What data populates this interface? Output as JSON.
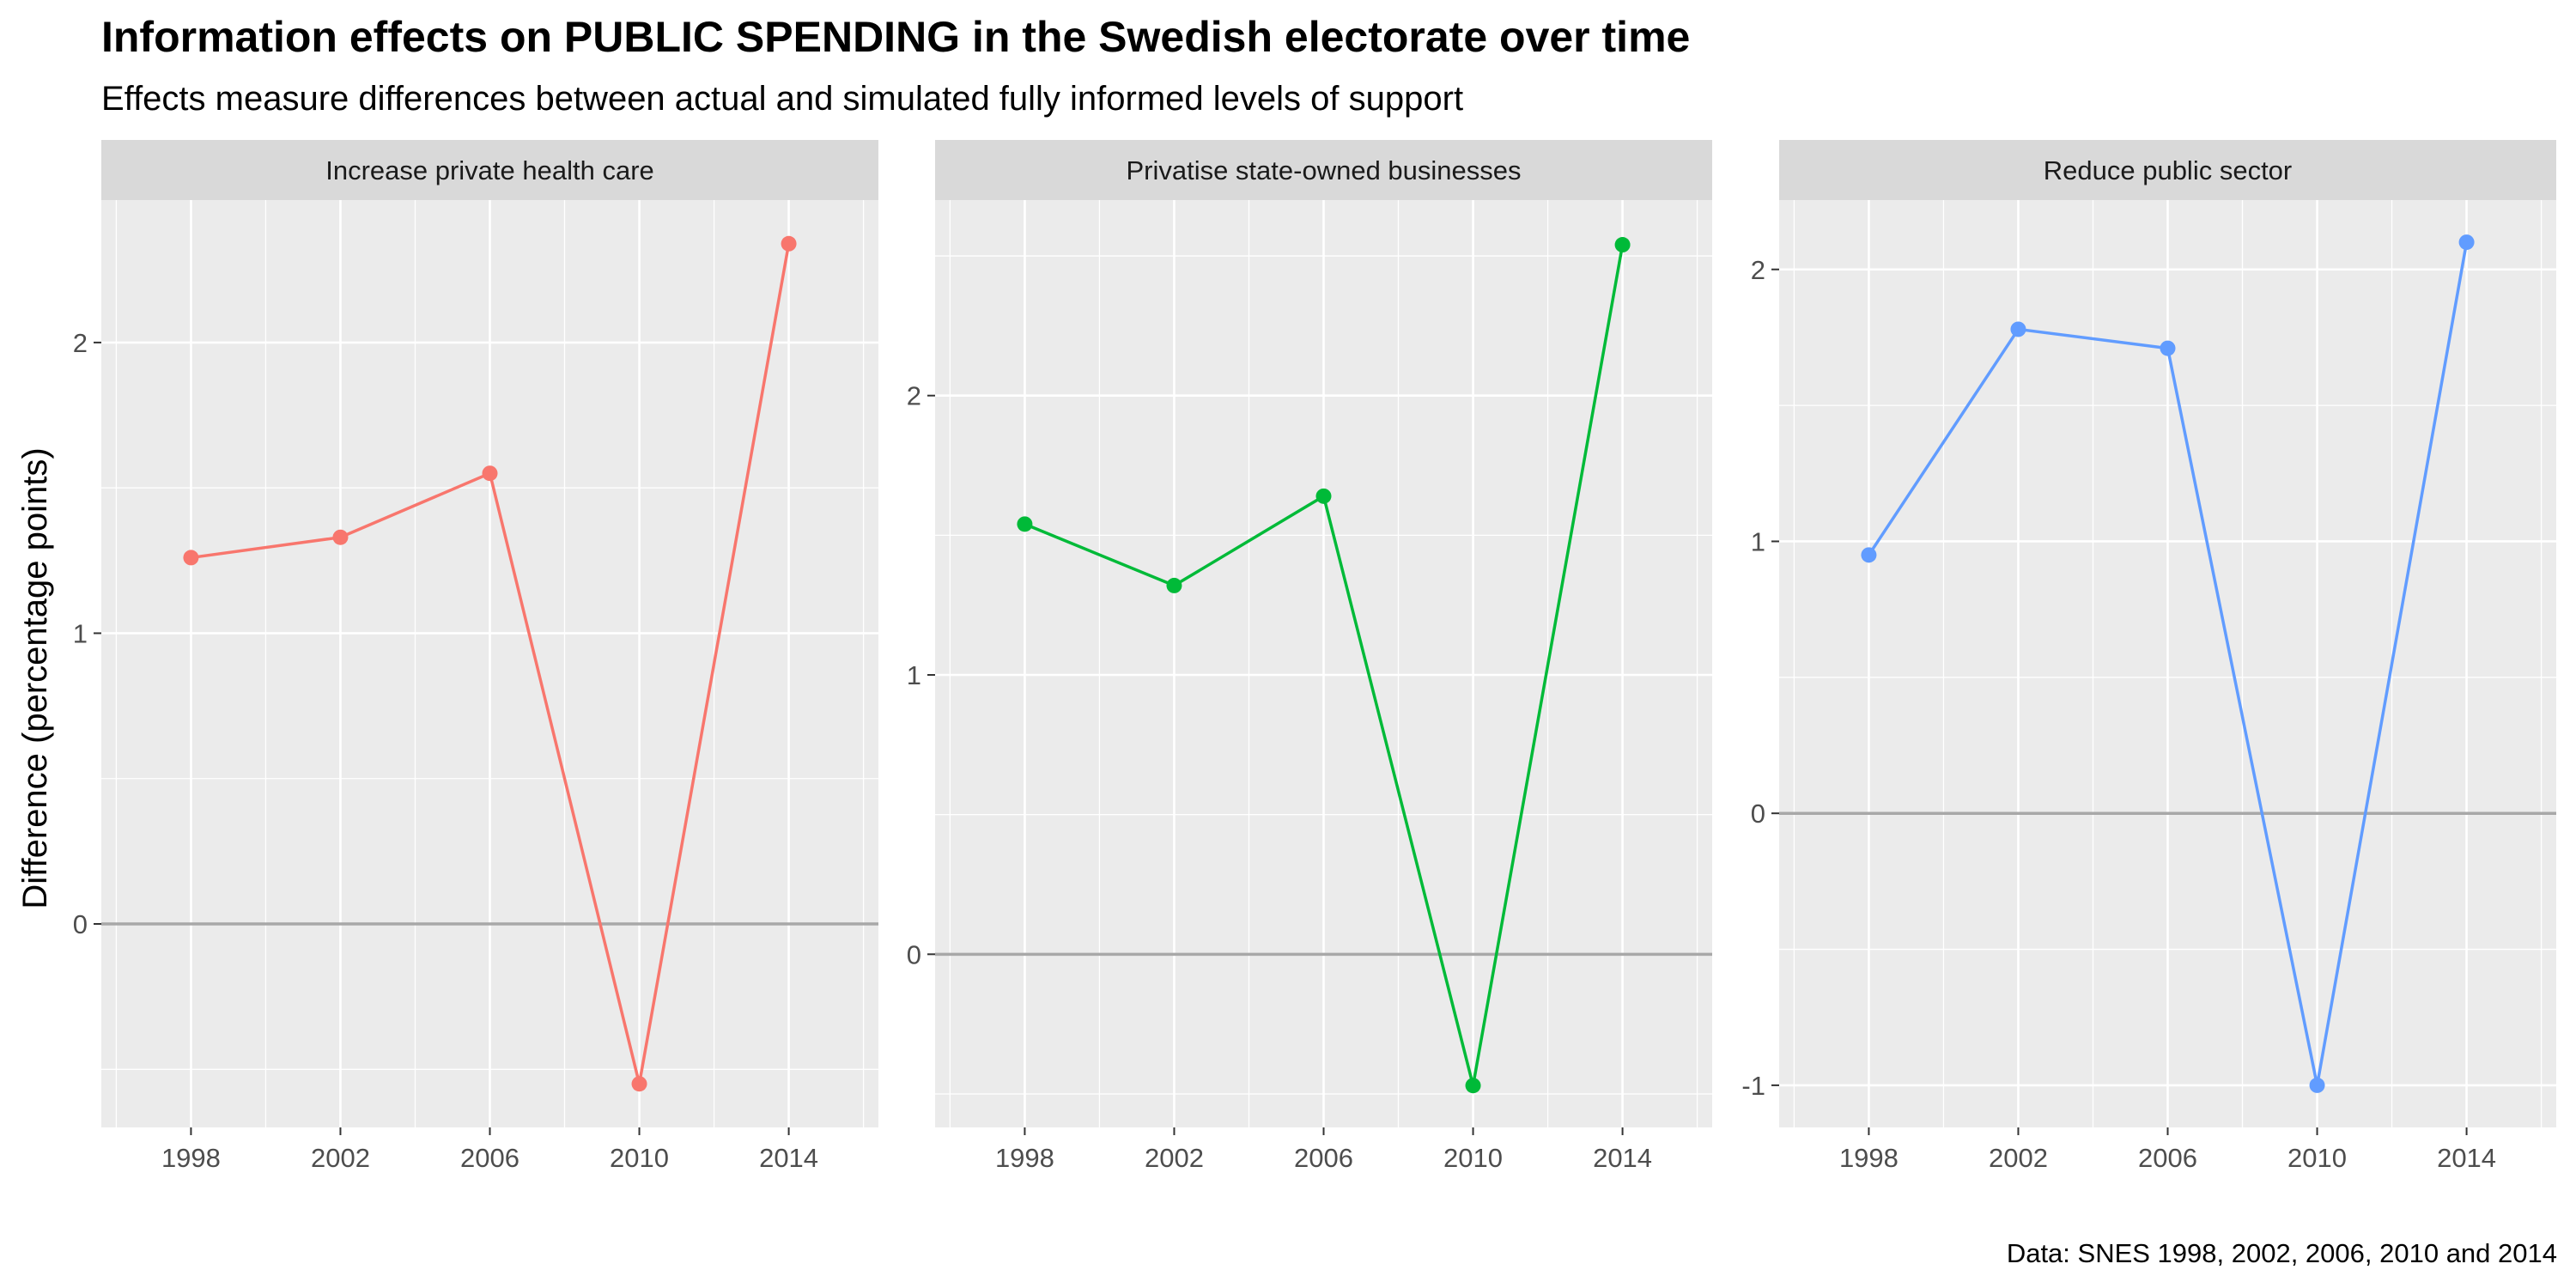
{
  "title": "Information effects on PUBLIC SPENDING in the Swedish electorate over time",
  "subtitle": "Effects measure differences between actual and simulated fully informed levels of support",
  "caption": "Data: SNES 1998, 2002, 2006, 2010 and 2014",
  "ylabel": "Difference (percentage points)",
  "chart_data": [
    {
      "type": "line",
      "title": "Increase private health care",
      "x": [
        1998,
        2002,
        2006,
        2010,
        2014
      ],
      "values": [
        1.26,
        1.33,
        1.55,
        -0.55,
        2.34
      ],
      "color": "#F8766D",
      "xlim": [
        1995.6,
        2016.4
      ],
      "ylim": [
        -0.7,
        2.49
      ],
      "xticks": [
        1998,
        2002,
        2006,
        2010,
        2014
      ],
      "yticks": [
        0,
        1,
        2
      ],
      "reference_line": 0,
      "grid": true
    },
    {
      "type": "line",
      "title": "Privatise state-owned businesses",
      "x": [
        1998,
        2002,
        2006,
        2010,
        2014
      ],
      "values": [
        1.54,
        1.32,
        1.64,
        -0.47,
        2.54
      ],
      "color": "#00BA38",
      "xlim": [
        1995.6,
        2016.4
      ],
      "ylim": [
        -0.62,
        2.7
      ],
      "xticks": [
        1998,
        2002,
        2006,
        2010,
        2014
      ],
      "yticks": [
        0,
        1,
        2
      ],
      "reference_line": 0,
      "grid": true
    },
    {
      "type": "line",
      "title": "Reduce public sector",
      "x": [
        1998,
        2002,
        2006,
        2010,
        2014
      ],
      "values": [
        0.95,
        1.78,
        1.71,
        -1.0,
        2.1
      ],
      "color": "#619CFF",
      "xlim": [
        1995.6,
        2016.4
      ],
      "ylim": [
        -1.155,
        2.255
      ],
      "xticks": [
        1998,
        2002,
        2006,
        2010,
        2014
      ],
      "yticks": [
        -1,
        0,
        1,
        2
      ],
      "reference_line": 0,
      "grid": true
    }
  ]
}
